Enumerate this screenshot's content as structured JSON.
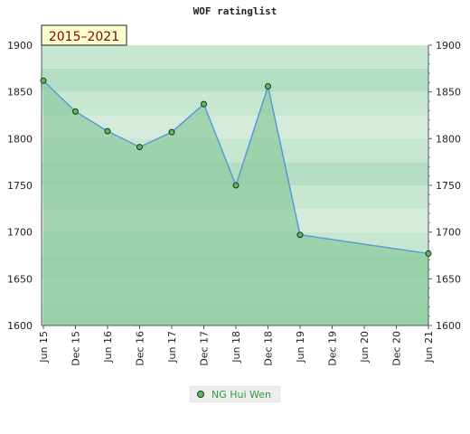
{
  "chart_data": {
    "type": "line",
    "title": "WOF ratinglist",
    "period_label": "2015–2021",
    "x_labels": [
      "Jun 15",
      "Dec 15",
      "Jun 16",
      "Dec 16",
      "Jun 17",
      "Dec 17",
      "Jun 18",
      "Dec 18",
      "Jun 19",
      "Dec 19",
      "Jun 20",
      "Dec 20",
      "Jun 21"
    ],
    "y_ticks": [
      1600,
      1650,
      1700,
      1750,
      1800,
      1850,
      1900
    ],
    "ylim": [
      1600,
      1900
    ],
    "series": [
      {
        "name": "NG Hui Wen",
        "color": "#5a9ad6",
        "marker_color": "#5cb85c",
        "points": [
          {
            "x": "Jun 15",
            "y": 1862
          },
          {
            "x": "Dec 15",
            "y": 1829
          },
          {
            "x": "Jun 16",
            "y": 1808
          },
          {
            "x": "Dec 16",
            "y": 1791
          },
          {
            "x": "Jun 17",
            "y": 1807
          },
          {
            "x": "Dec 17",
            "y": 1837
          },
          {
            "x": "Jun 18",
            "y": 1750
          },
          {
            "x": "Dec 18",
            "y": 1856
          },
          {
            "x": "Jun 19",
            "y": 1697
          },
          {
            "x": "Jun 21",
            "y": 1677
          }
        ]
      }
    ],
    "grid": true,
    "legend": "bottom-center",
    "colors": {
      "fill": "#8fcc9f",
      "band_dark": "#b4dec3",
      "band_light": "#f0f8f2",
      "period_box": "#ffffcc",
      "period_text": "#8b0000"
    }
  }
}
